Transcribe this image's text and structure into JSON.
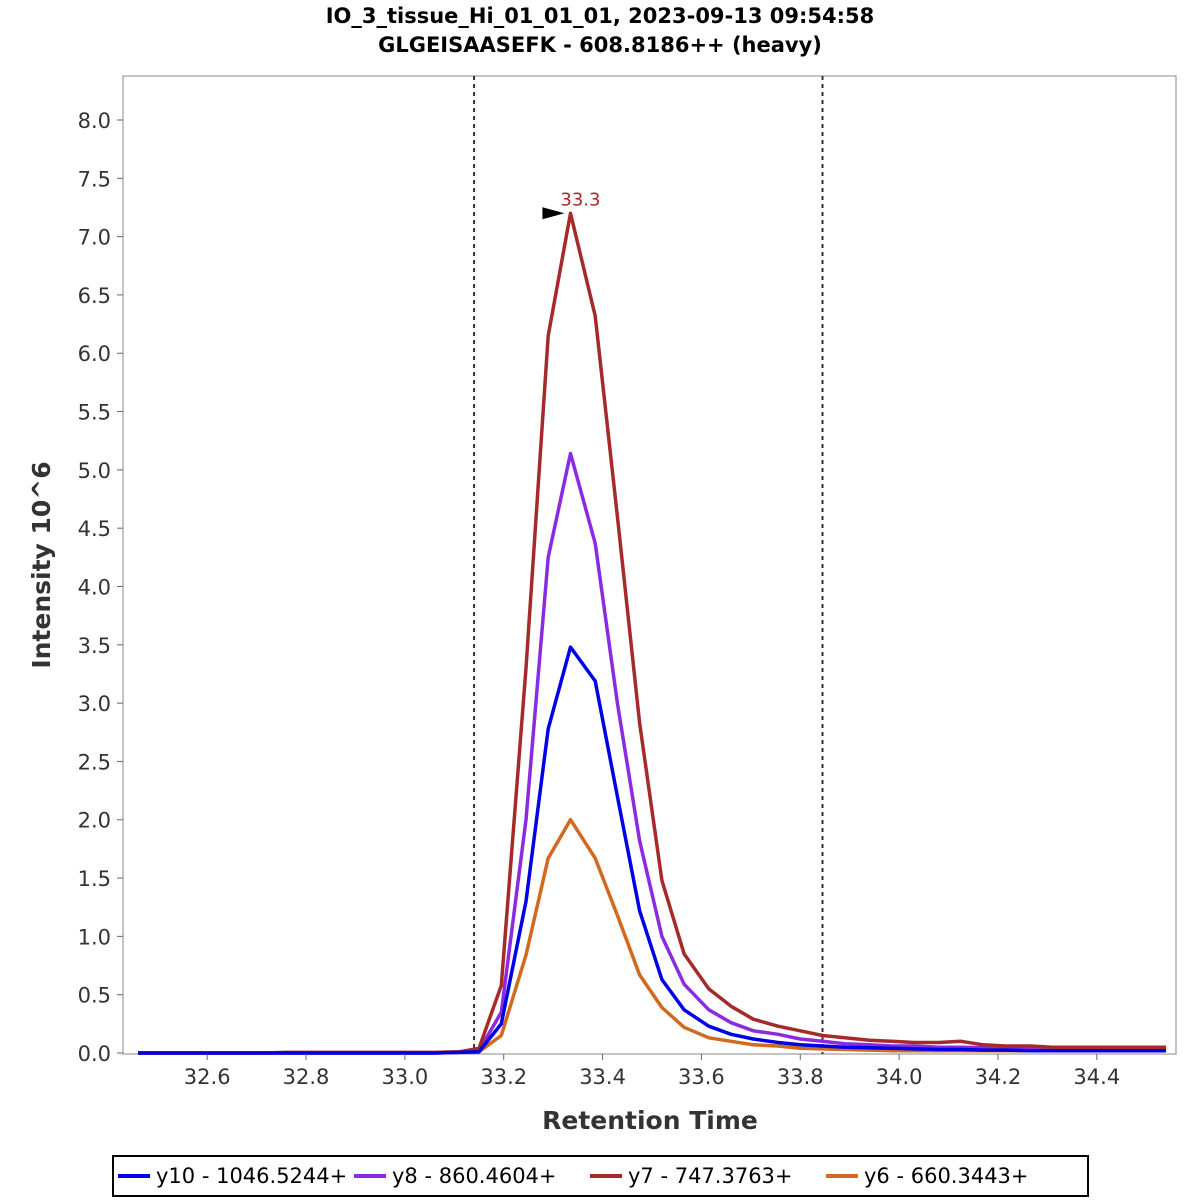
{
  "chart_data": {
    "type": "line",
    "title": "IO_3_tissue_Hi_01_01_01, 2023-09-13 09:54:58",
    "subtitle": "GLGEISAASEFK - 608.8186++ (heavy)",
    "xlabel": "Retention Time",
    "ylabel": "Intensity 10^6",
    "xlim": [
      32.46,
      34.54
    ],
    "ylim": [
      0,
      8.3
    ],
    "xticks": [
      "32.6",
      "32.8",
      "33.0",
      "33.2",
      "33.4",
      "33.6",
      "33.8",
      "34.0",
      "34.2",
      "34.4"
    ],
    "yticks": [
      "0.0",
      "0.5",
      "1.0",
      "1.5",
      "2.0",
      "2.5",
      "3.0",
      "3.5",
      "4.0",
      "4.5",
      "5.0",
      "5.5",
      "6.0",
      "6.5",
      "7.0",
      "7.5",
      "8.0"
    ],
    "grid": false,
    "legend_position": "bottom",
    "boundaries": [
      33.14,
      33.845
    ],
    "peak_annotation": {
      "label": "33.3",
      "x": 33.335,
      "y": 7.2,
      "color": "#a52a2a"
    },
    "x": [
      32.46,
      32.51,
      32.56,
      32.61,
      32.66,
      32.71,
      32.76,
      32.81,
      32.86,
      32.91,
      32.96,
      33.01,
      33.06,
      33.11,
      33.15,
      33.195,
      33.245,
      33.29,
      33.335,
      33.385,
      33.43,
      33.475,
      33.52,
      33.565,
      33.615,
      33.66,
      33.705,
      33.755,
      33.8,
      33.845,
      33.89,
      33.94,
      33.985,
      34.03,
      34.08,
      34.125,
      34.17,
      34.215,
      34.265,
      34.31,
      34.355,
      34.4,
      34.45,
      34.495,
      34.54
    ],
    "series": [
      {
        "name": "y10 - 1046.5244+",
        "color": "#0000e6",
        "values": [
          0.0,
          0.0,
          0.0,
          0.0,
          0.0,
          0.0,
          0.0,
          0.0,
          0.0,
          0.0,
          0.0,
          0.0,
          0.0,
          0.005,
          0.01,
          0.25,
          1.3,
          2.78,
          3.48,
          3.19,
          2.2,
          1.22,
          0.63,
          0.37,
          0.23,
          0.16,
          0.12,
          0.09,
          0.07,
          0.06,
          0.05,
          0.045,
          0.04,
          0.035,
          0.03,
          0.03,
          0.025,
          0.025,
          0.02,
          0.02,
          0.02,
          0.02,
          0.02,
          0.02,
          0.02
        ]
      },
      {
        "name": "y8 - 860.4604+",
        "color": "#8a2be2",
        "values": [
          0.0,
          0.0,
          0.0,
          0.0,
          0.0,
          0.0,
          0.0,
          0.0,
          0.0,
          0.0,
          0.0,
          0.0,
          0.0,
          0.005,
          0.02,
          0.35,
          2.0,
          4.25,
          5.14,
          4.37,
          3.0,
          1.82,
          1.0,
          0.59,
          0.37,
          0.26,
          0.19,
          0.16,
          0.12,
          0.1,
          0.08,
          0.07,
          0.06,
          0.06,
          0.05,
          0.05,
          0.045,
          0.04,
          0.04,
          0.035,
          0.035,
          0.03,
          0.03,
          0.03,
          0.03
        ]
      },
      {
        "name": "y7 - 747.3763+",
        "color": "#a52a2a",
        "values": [
          0.0,
          0.0,
          0.0,
          0.0,
          0.0,
          0.0,
          0.005,
          0.005,
          0.005,
          0.005,
          0.005,
          0.005,
          0.005,
          0.01,
          0.04,
          0.58,
          3.3,
          6.15,
          7.2,
          6.32,
          4.6,
          2.83,
          1.48,
          0.85,
          0.55,
          0.4,
          0.29,
          0.23,
          0.19,
          0.15,
          0.13,
          0.11,
          0.1,
          0.09,
          0.09,
          0.1,
          0.07,
          0.06,
          0.06,
          0.05,
          0.05,
          0.05,
          0.05,
          0.05,
          0.05
        ]
      },
      {
        "name": "y6 - 660.3443+",
        "color": "#d2691e",
        "values": [
          0.0,
          0.0,
          0.0,
          0.0,
          0.0,
          0.0,
          0.0,
          0.0,
          0.0,
          0.0,
          0.0,
          0.0,
          0.0,
          0.005,
          0.01,
          0.15,
          0.84,
          1.67,
          2.0,
          1.67,
          1.18,
          0.67,
          0.39,
          0.22,
          0.13,
          0.1,
          0.07,
          0.06,
          0.04,
          0.035,
          0.03,
          0.025,
          0.02,
          0.02,
          0.02,
          0.02,
          0.02,
          0.02,
          0.02,
          0.02,
          0.02,
          0.02,
          0.02,
          0.02,
          0.02
        ]
      }
    ]
  }
}
